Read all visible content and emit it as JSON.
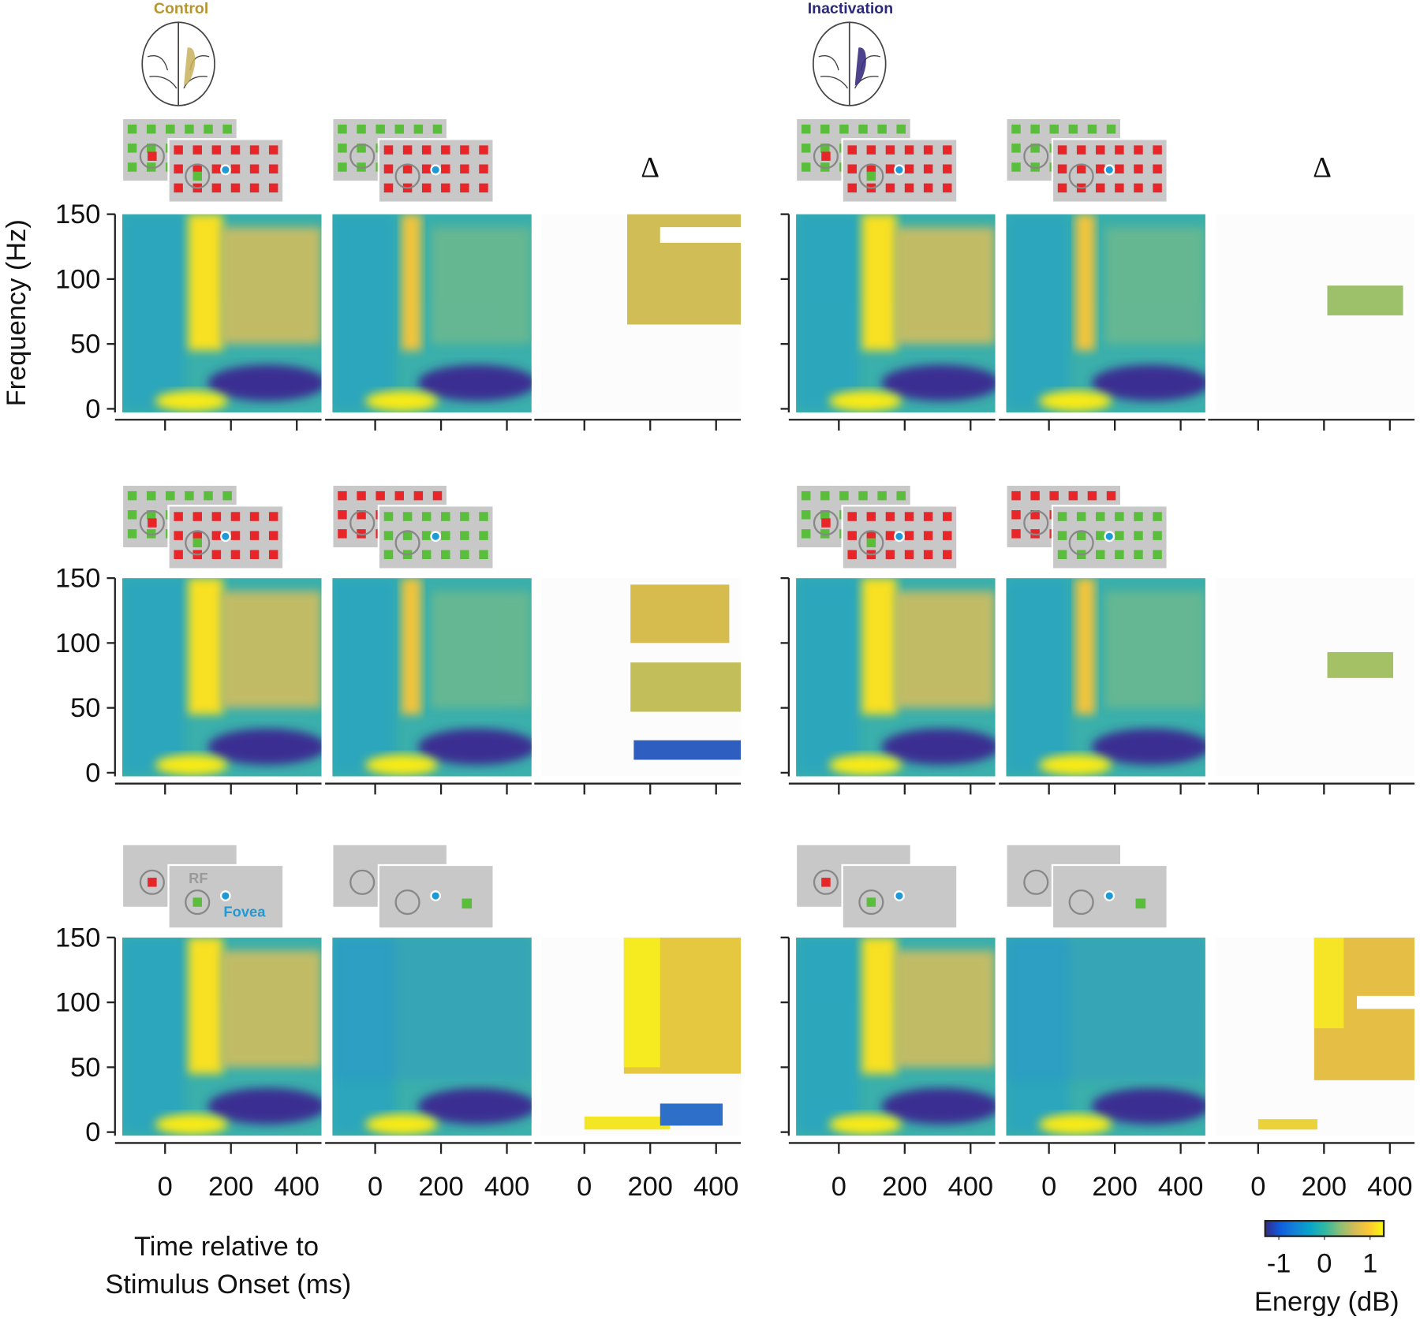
{
  "labels": {
    "control": "Control",
    "inactivation": "Inactivation",
    "delta": "Δ",
    "rf": "RF",
    "fovea": "Fovea"
  },
  "y_axis": {
    "label": "Frequency (Hz)",
    "ylim": [
      0,
      150
    ],
    "yticks": [
      0,
      50,
      100,
      150
    ]
  },
  "x_axis": {
    "label_lines": [
      "Time relative to",
      "Stimulus Onset (ms)"
    ],
    "xlim": [
      -130,
      475
    ],
    "xticks": [
      0,
      200,
      400
    ]
  },
  "colorbar": {
    "label": "Energy (dB)",
    "lim": [
      -1.3,
      1.3
    ],
    "ticks": [
      -1,
      0,
      1
    ],
    "colors": [
      "#352a87",
      "#0f5cdd",
      "#1481d6",
      "#06a4ca",
      "#2eb7a4",
      "#87bf77",
      "#d1bb59",
      "#fec832",
      "#f9fb0e"
    ]
  }
}
